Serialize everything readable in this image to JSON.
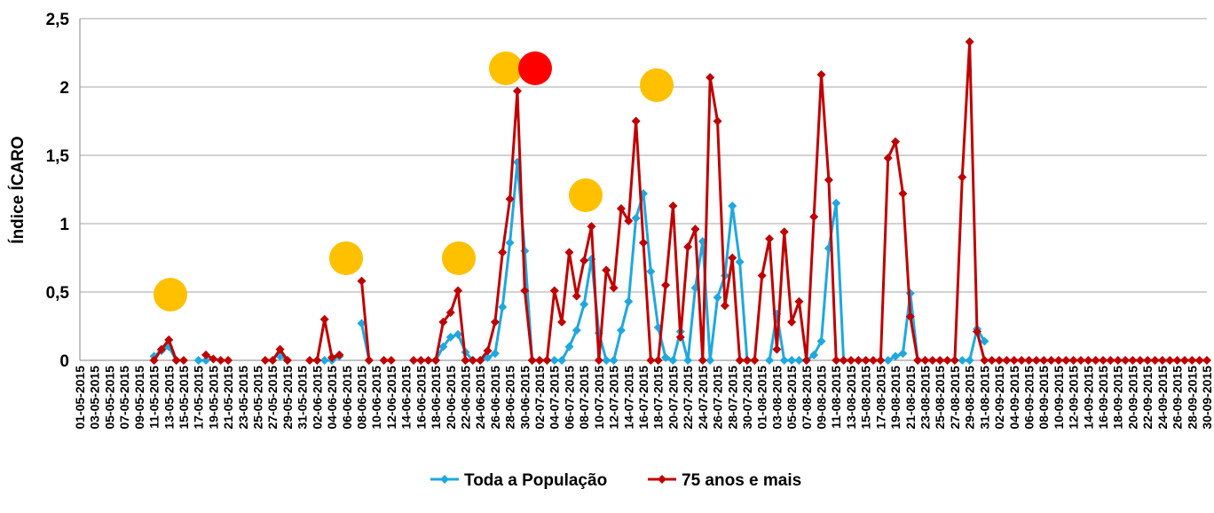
{
  "chart_data": {
    "type": "line",
    "y_label": "Índice ÍCARO",
    "categories": [
      "01-05-2015",
      null,
      "03-05-2015",
      null,
      "05-05-2015",
      null,
      "07-05-2015",
      null,
      "09-05-2015",
      null,
      "11-05-2015",
      null,
      "13-05-2015",
      null,
      "15-05-2015",
      null,
      "17-05-2015",
      null,
      "19-05-2015",
      null,
      "21-05-2015",
      null,
      "23-05-2015",
      null,
      "25-05-2015",
      null,
      "27-05-2015",
      null,
      "29-05-2015",
      null,
      "31-05-2015",
      null,
      "02-06-2015",
      null,
      "04-06-2015",
      null,
      "06-06-2015",
      null,
      "08-06-2015",
      null,
      "10-06-2015",
      null,
      "12-06-2015",
      null,
      "14-06-2015",
      null,
      "16-06-2015",
      null,
      "18-06-2015",
      null,
      "20-06-2015",
      null,
      "22-06-2015",
      null,
      "24-06-2015",
      null,
      "26-06-2015",
      null,
      "28-06-2015",
      null,
      "30-06-2015",
      null,
      "02-07-2015",
      null,
      "04-07-2015",
      null,
      "06-07-2015",
      null,
      "08-07-2015",
      null,
      "10-07-2015",
      null,
      "12-07-2015",
      null,
      "14-07-2015",
      null,
      "16-07-2015",
      null,
      "18-07-2015",
      null,
      "20-07-2015",
      null,
      "22-07-2015",
      null,
      "24-07-2015",
      null,
      "26-07-2015",
      null,
      "28-07-2015",
      null,
      "30-07-2015",
      null,
      "01-08-2015",
      null,
      "03-08-2015",
      null,
      "05-08-2015",
      null,
      "07-08-2015",
      null,
      "09-08-2015",
      null,
      "11-08-2015",
      null,
      "13-08-2015",
      null,
      "15-08-2015",
      null,
      "17-08-2015",
      null,
      "19-08-2015",
      null,
      "21-08-2015",
      null,
      "23-08-2015",
      null,
      "25-08-2015",
      null,
      "27-08-2015",
      null,
      "29-08-2015",
      null,
      "31-08-2015",
      null,
      "02-09-2015",
      null,
      "04-09-2015",
      null,
      "06-09-2015",
      null,
      "08-09-2015",
      null,
      "10-09-2015",
      null,
      "12-09-2015",
      null,
      "14-09-2015",
      null,
      "16-09-2015",
      null,
      "18-09-2015",
      null,
      "20-09-2015",
      null,
      "22-09-2015",
      null,
      "24-09-2015",
      null,
      "26-09-2015",
      null,
      "28-09-2015",
      null,
      "30-09-2015"
    ],
    "series": [
      {
        "name": "Toda a População",
        "color": "#1fa8e0",
        "values": [
          null,
          null,
          null,
          null,
          null,
          null,
          null,
          null,
          null,
          null,
          0.03,
          0.07,
          0.1,
          0,
          null,
          null,
          0,
          0,
          null,
          null,
          null,
          null,
          null,
          null,
          null,
          null,
          null,
          0.03,
          0,
          null,
          null,
          null,
          null,
          0,
          0,
          0.03,
          null,
          null,
          0.27,
          0,
          null,
          null,
          null,
          null,
          null,
          null,
          null,
          null,
          0,
          0.1,
          0.17,
          0.19,
          0.06,
          0,
          0,
          0.02,
          0.05,
          0.39,
          0.86,
          1.45,
          0.8,
          0,
          0,
          0,
          0,
          0,
          0.1,
          0.22,
          0.41,
          0.74,
          0.2,
          0,
          0,
          0.22,
          0.43,
          1.04,
          1.22,
          0.65,
          0.24,
          0.02,
          0,
          0.21,
          0,
          0.53,
          0.87,
          0,
          0.46,
          0.62,
          1.13,
          0.72,
          0,
          null,
          null,
          0,
          0.34,
          0,
          0,
          0,
          0,
          0.04,
          0.14,
          0.82,
          1.15,
          0,
          null,
          null,
          null,
          null,
          null,
          0,
          0.03,
          0.05,
          0.49,
          0,
          null,
          null,
          null,
          null,
          null,
          0,
          0,
          0.23,
          0.14,
          null,
          null,
          null,
          null,
          null,
          null,
          null,
          null,
          null,
          null,
          null,
          null,
          null,
          null,
          null,
          null,
          null,
          null,
          null,
          null,
          null,
          null,
          null,
          null,
          null,
          null,
          null,
          null,
          null,
          null
        ]
      },
      {
        "name": "75 anos e mais",
        "color": "#c00000",
        "values": [
          null,
          null,
          null,
          null,
          null,
          null,
          null,
          null,
          null,
          null,
          0,
          0.08,
          0.15,
          0,
          0,
          null,
          null,
          0.04,
          0.01,
          0,
          0,
          null,
          null,
          null,
          null,
          0,
          0,
          0.08,
          0,
          null,
          null,
          0,
          0,
          0.3,
          0.02,
          0.04,
          null,
          null,
          0.58,
          0,
          null,
          0,
          0,
          null,
          null,
          0,
          0,
          0,
          0,
          0.28,
          0.35,
          0.51,
          0,
          0,
          0,
          0.07,
          0.28,
          0.79,
          1.18,
          1.97,
          0.51,
          0,
          0,
          0,
          0.51,
          0.28,
          0.79,
          0.47,
          0.73,
          0.98,
          0,
          0.66,
          0.53,
          1.11,
          1.02,
          1.75,
          0.86,
          0,
          0,
          0.55,
          1.13,
          0.17,
          0.83,
          0.96,
          0,
          2.07,
          1.75,
          0.4,
          0.75,
          0,
          0,
          0,
          0.62,
          0.89,
          0.08,
          0.94,
          0.28,
          0.43,
          0,
          1.05,
          2.09,
          1.32,
          0,
          0,
          0,
          0,
          0,
          0,
          0,
          1.48,
          1.6,
          1.22,
          0.32,
          0,
          0,
          0,
          0,
          0,
          0,
          1.34,
          2.33,
          0.21,
          0,
          0,
          0,
          0,
          0,
          0,
          0,
          0,
          0,
          0,
          0,
          0,
          0,
          0,
          0,
          0,
          0,
          0,
          0,
          0,
          0,
          0,
          0,
          0,
          0,
          0,
          0,
          0,
          0,
          0,
          0
        ]
      }
    ],
    "ylim": [
      0,
      2.5
    ],
    "yticks": [
      0,
      {
        "value": 0.5,
        "label": "0,5"
      },
      1,
      {
        "value": 1.5,
        "label": "1,5"
      },
      2,
      {
        "value": 2.5,
        "label": "2,5"
      }
    ],
    "grid": true,
    "legend": "bottom"
  }
}
